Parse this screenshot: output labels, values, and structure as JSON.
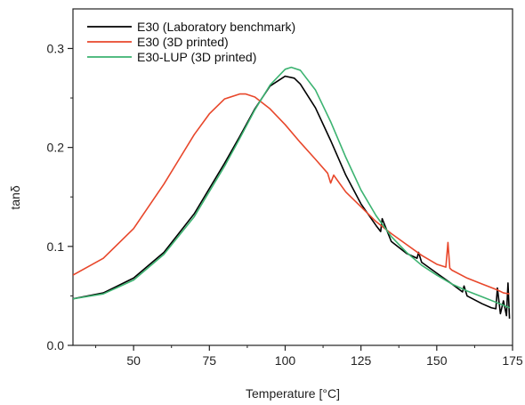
{
  "chart_data": {
    "type": "line",
    "title": "",
    "xlabel": "Temperature [°C]",
    "ylabel": "tanδ",
    "xlim": [
      30,
      175
    ],
    "ylim": [
      0.0,
      0.34
    ],
    "x_ticks": [
      50,
      75,
      100,
      125,
      150,
      175
    ],
    "y_ticks": [
      0.0,
      0.1,
      0.2,
      0.3
    ],
    "x_tick_labels": [
      "50",
      "75",
      "100",
      "125",
      "150",
      "175"
    ],
    "y_tick_labels": [
      "0.0",
      "0.1",
      "0.2",
      "0.3"
    ],
    "grid": false,
    "legend_position": "top-left",
    "series": [
      {
        "name": "E30 (Laboratory benchmark)",
        "color": "#000000",
        "x": [
          30,
          40,
          50,
          60,
          70,
          80,
          85,
          90,
          95,
          100,
          103,
          105,
          110,
          115,
          120,
          125,
          130,
          131.5,
          132,
          135,
          140,
          143.5,
          144,
          145,
          150,
          155,
          158.5,
          159,
          160,
          165,
          168,
          169.5,
          170,
          171,
          172,
          173,
          173.5,
          174
        ],
        "y": [
          0.047,
          0.053,
          0.068,
          0.094,
          0.133,
          0.184,
          0.211,
          0.239,
          0.262,
          0.272,
          0.27,
          0.264,
          0.24,
          0.207,
          0.172,
          0.143,
          0.121,
          0.115,
          0.128,
          0.105,
          0.093,
          0.088,
          0.094,
          0.084,
          0.073,
          0.062,
          0.054,
          0.06,
          0.05,
          0.042,
          0.038,
          0.037,
          0.058,
          0.032,
          0.045,
          0.03,
          0.063,
          0.027
        ]
      },
      {
        "name": "E30 (3D printed)",
        "color": "#e8472b",
        "x": [
          30,
          40,
          50,
          60,
          65,
          70,
          75,
          80,
          85,
          87,
          90,
          95,
          100,
          105,
          110,
          114,
          115,
          116,
          120,
          125,
          130,
          135,
          140,
          145,
          150,
          153,
          153.7,
          154.3,
          155,
          160,
          165,
          170,
          172,
          174
        ],
        "y": [
          0.071,
          0.088,
          0.118,
          0.163,
          0.188,
          0.213,
          0.234,
          0.249,
          0.254,
          0.254,
          0.251,
          0.239,
          0.223,
          0.205,
          0.188,
          0.174,
          0.164,
          0.172,
          0.155,
          0.14,
          0.125,
          0.113,
          0.102,
          0.091,
          0.082,
          0.079,
          0.104,
          0.078,
          0.076,
          0.068,
          0.062,
          0.056,
          0.053,
          0.052
        ]
      },
      {
        "name": "E30-LUP (3D printed)",
        "color": "#3cb371",
        "x": [
          30,
          40,
          50,
          60,
          70,
          80,
          85,
          90,
          95,
          100,
          102,
          105,
          110,
          115,
          120,
          125,
          130,
          135,
          140,
          145,
          150,
          155,
          160,
          165,
          170,
          174
        ],
        "y": [
          0.047,
          0.052,
          0.066,
          0.092,
          0.13,
          0.181,
          0.209,
          0.238,
          0.263,
          0.279,
          0.281,
          0.278,
          0.258,
          0.226,
          0.19,
          0.157,
          0.131,
          0.11,
          0.094,
          0.081,
          0.071,
          0.062,
          0.055,
          0.049,
          0.043,
          0.038
        ]
      }
    ]
  }
}
